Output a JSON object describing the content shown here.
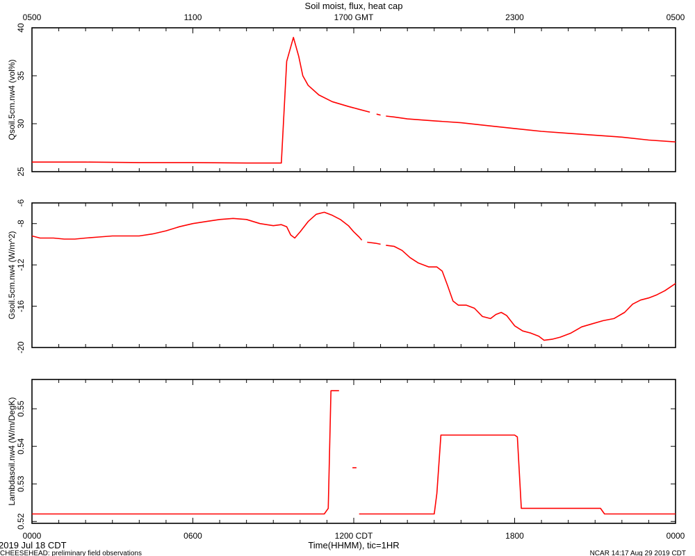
{
  "figure": {
    "title": "Soil moist, flux, heat cap",
    "top_axis_ticks": [
      "0500",
      "1100",
      "1700 GMT",
      "2300",
      "0500"
    ],
    "bottom_axis_ticks": [
      "0000",
      "0600",
      "1200 CDT",
      "1800",
      "0000"
    ],
    "x_axis_label": "Time(HHMM), tic=1HR",
    "date_label": "2019 Jul 18 CDT",
    "footer_left": "CHEESEHEAD: preliminary field observations",
    "footer_right": "NCAR 14:17 Aug 29 2019 CDT",
    "line_color": "#ff0000"
  },
  "chart_data": [
    {
      "type": "line",
      "ylabel": "Qsoil.5cm.nw4 (vol%)",
      "ylim": [
        25,
        40
      ],
      "yticks": [
        25,
        30,
        35,
        40
      ],
      "xlim": [
        0,
        24
      ],
      "segments": [
        [
          [
            0,
            26.0
          ],
          [
            2,
            26.0
          ],
          [
            4,
            25.95
          ],
          [
            6,
            25.95
          ],
          [
            8,
            25.9
          ],
          [
            9.3,
            25.9
          ],
          [
            9.5,
            36.5
          ],
          [
            9.75,
            39.0
          ],
          [
            9.95,
            37.0
          ],
          [
            10.1,
            35.0
          ],
          [
            10.3,
            34.0
          ],
          [
            10.7,
            33.0
          ],
          [
            11.2,
            32.3
          ],
          [
            11.8,
            31.8
          ],
          [
            12.2,
            31.5
          ],
          [
            12.6,
            31.2
          ]
        ],
        [
          [
            12.85,
            31.0
          ],
          [
            13.0,
            30.9
          ]
        ],
        [
          [
            13.2,
            30.8
          ],
          [
            13.5,
            30.7
          ],
          [
            14.0,
            30.5
          ],
          [
            15.0,
            30.3
          ],
          [
            16.0,
            30.1
          ],
          [
            17.0,
            29.8
          ],
          [
            18.0,
            29.5
          ],
          [
            19.0,
            29.2
          ],
          [
            20.0,
            29.0
          ],
          [
            21.0,
            28.8
          ],
          [
            22.0,
            28.6
          ],
          [
            23.0,
            28.3
          ],
          [
            24.0,
            28.1
          ]
        ]
      ]
    },
    {
      "type": "line",
      "ylabel": "Gsoil.5cm.nw4 (W/m^2)",
      "ylim": [
        -20,
        -6
      ],
      "yticks": [
        -6,
        -8,
        -12,
        -16,
        -20
      ],
      "xlim": [
        0,
        24
      ],
      "segments": [
        [
          [
            0,
            -9.2
          ],
          [
            0.3,
            -9.4
          ],
          [
            0.8,
            -9.4
          ],
          [
            1.2,
            -9.5
          ],
          [
            1.6,
            -9.5
          ],
          [
            2.0,
            -9.4
          ],
          [
            2.5,
            -9.3
          ],
          [
            3.0,
            -9.2
          ],
          [
            3.5,
            -9.2
          ],
          [
            4.0,
            -9.2
          ],
          [
            4.5,
            -9.0
          ],
          [
            5.0,
            -8.7
          ],
          [
            5.5,
            -8.3
          ],
          [
            6.0,
            -8.0
          ],
          [
            6.5,
            -7.8
          ],
          [
            7.0,
            -7.6
          ],
          [
            7.5,
            -7.5
          ],
          [
            8.0,
            -7.6
          ],
          [
            8.5,
            -8.0
          ],
          [
            9.0,
            -8.2
          ],
          [
            9.3,
            -8.1
          ],
          [
            9.5,
            -8.3
          ],
          [
            9.65,
            -9.1
          ],
          [
            9.8,
            -9.4
          ],
          [
            10.0,
            -8.8
          ],
          [
            10.3,
            -7.8
          ],
          [
            10.6,
            -7.1
          ],
          [
            10.9,
            -6.9
          ],
          [
            11.2,
            -7.2
          ],
          [
            11.5,
            -7.6
          ],
          [
            11.8,
            -8.2
          ],
          [
            12.0,
            -8.8
          ],
          [
            12.2,
            -9.3
          ],
          [
            12.3,
            -9.6
          ]
        ],
        [
          [
            12.5,
            -9.8
          ],
          [
            12.8,
            -9.9
          ],
          [
            13.0,
            -10.0
          ]
        ],
        [
          [
            13.2,
            -10.1
          ],
          [
            13.5,
            -10.2
          ],
          [
            13.8,
            -10.6
          ],
          [
            14.1,
            -11.3
          ],
          [
            14.4,
            -11.8
          ],
          [
            14.8,
            -12.2
          ],
          [
            15.1,
            -12.2
          ],
          [
            15.3,
            -12.6
          ],
          [
            15.5,
            -14.0
          ],
          [
            15.7,
            -15.5
          ],
          [
            15.9,
            -15.9
          ],
          [
            16.2,
            -15.9
          ],
          [
            16.5,
            -16.2
          ],
          [
            16.8,
            -17.0
          ],
          [
            17.1,
            -17.2
          ],
          [
            17.3,
            -16.8
          ],
          [
            17.5,
            -16.6
          ],
          [
            17.7,
            -16.9
          ],
          [
            18.0,
            -17.9
          ],
          [
            18.3,
            -18.4
          ],
          [
            18.6,
            -18.6
          ],
          [
            18.9,
            -18.9
          ],
          [
            19.1,
            -19.3
          ],
          [
            19.4,
            -19.2
          ],
          [
            19.7,
            -19.0
          ],
          [
            20.1,
            -18.6
          ],
          [
            20.5,
            -18.0
          ],
          [
            20.9,
            -17.7
          ],
          [
            21.3,
            -17.4
          ],
          [
            21.7,
            -17.2
          ],
          [
            22.1,
            -16.6
          ],
          [
            22.4,
            -15.8
          ],
          [
            22.7,
            -15.4
          ],
          [
            23.0,
            -15.2
          ],
          [
            23.3,
            -14.9
          ],
          [
            23.6,
            -14.5
          ],
          [
            24.0,
            -13.8
          ]
        ]
      ]
    },
    {
      "type": "line",
      "ylabel": "Lambdasoil.nw4 (W/m/DegK)",
      "ylim": [
        0.5195,
        0.5578
      ],
      "yticks": [
        0.52,
        0.53,
        0.54,
        0.55
      ],
      "xlim": [
        0,
        24
      ],
      "segments": [
        [
          [
            0,
            0.522
          ],
          [
            10.9,
            0.522
          ],
          [
            11.05,
            0.5235
          ],
          [
            11.15,
            0.5548
          ],
          [
            11.45,
            0.5548
          ]
        ],
        [
          [
            11.95,
            0.5343
          ],
          [
            12.1,
            0.5343
          ]
        ],
        [
          [
            12.2,
            0.522
          ],
          [
            15.0,
            0.522
          ],
          [
            15.1,
            0.5275
          ],
          [
            15.25,
            0.543
          ],
          [
            18.0,
            0.543
          ],
          [
            18.1,
            0.5425
          ],
          [
            18.25,
            0.5235
          ],
          [
            21.2,
            0.5235
          ],
          [
            21.35,
            0.522
          ],
          [
            24.0,
            0.522
          ]
        ]
      ]
    }
  ]
}
